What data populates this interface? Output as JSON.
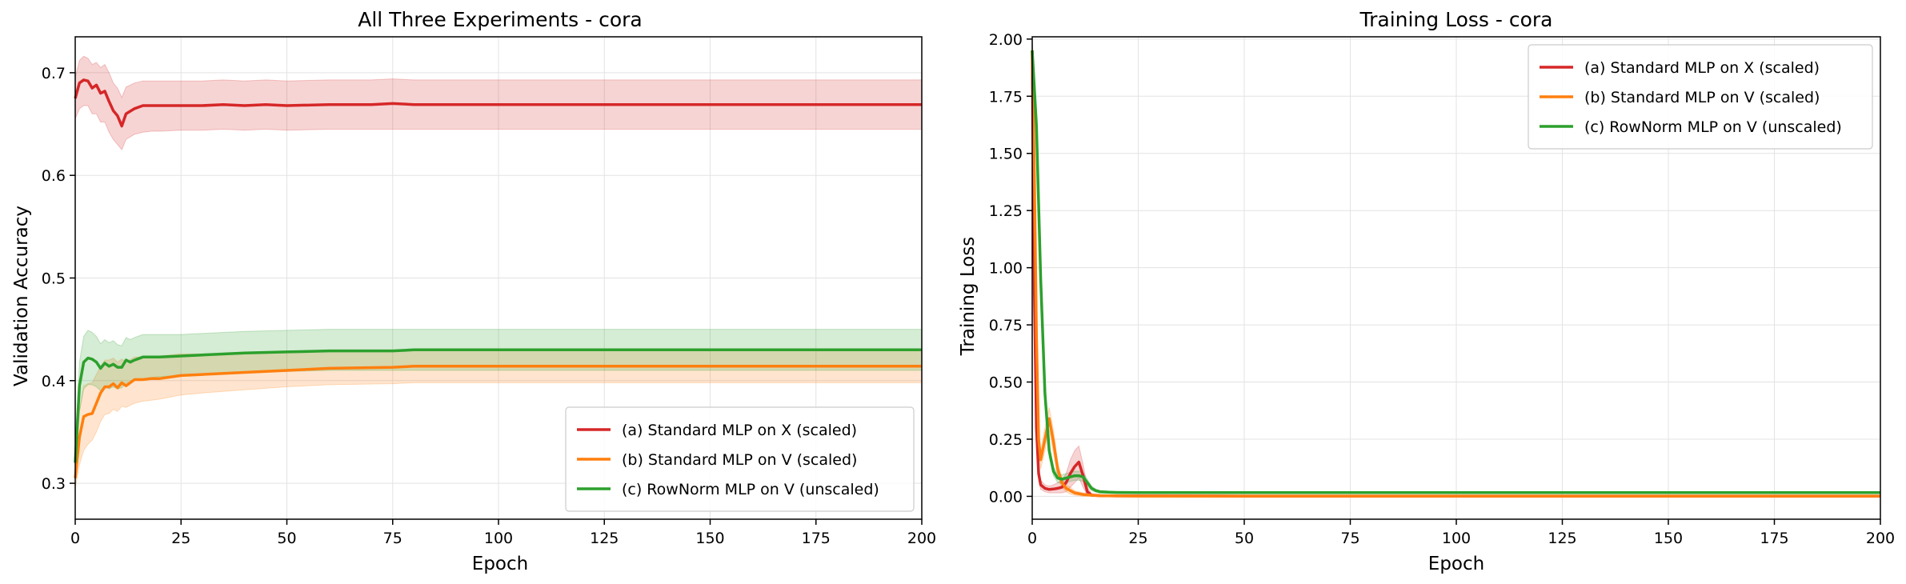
{
  "colors": {
    "a": "#d62728",
    "b": "#ff7f0e",
    "c": "#2ca02c"
  },
  "chart_data": [
    {
      "type": "line",
      "title": "All Three Experiments - cora",
      "xlabel": "Epoch",
      "ylabel": "Validation Accuracy",
      "xlim": [
        0,
        200
      ],
      "ylim": [
        0.265,
        0.735
      ],
      "xticks": [
        "0",
        "25",
        "50",
        "75",
        "100",
        "125",
        "150",
        "175",
        "200"
      ],
      "yticks": [
        "0.3",
        "0.4",
        "0.5",
        "0.6",
        "0.7"
      ],
      "grid": true,
      "legend_position": "lower-right",
      "series": [
        {
          "name": "(a) Standard MLP on X (scaled)",
          "color_key": "a",
          "x": [
            0,
            1,
            2,
            3,
            4,
            5,
            6,
            7,
            8,
            9,
            10,
            11,
            12,
            14,
            16,
            18,
            20,
            25,
            30,
            35,
            40,
            45,
            50,
            60,
            70,
            75,
            80,
            100,
            125,
            150,
            175,
            200
          ],
          "y": [
            0.675,
            0.69,
            0.693,
            0.692,
            0.685,
            0.688,
            0.68,
            0.682,
            0.672,
            0.663,
            0.658,
            0.648,
            0.66,
            0.665,
            0.668,
            0.668,
            0.668,
            0.668,
            0.668,
            0.669,
            0.668,
            0.669,
            0.668,
            0.669,
            0.669,
            0.67,
            0.669,
            0.669,
            0.669,
            0.669,
            0.669,
            0.669
          ],
          "lower": [
            0.655,
            0.665,
            0.668,
            0.668,
            0.66,
            0.66,
            0.652,
            0.652,
            0.642,
            0.635,
            0.63,
            0.625,
            0.635,
            0.64,
            0.642,
            0.643,
            0.643,
            0.644,
            0.644,
            0.645,
            0.644,
            0.645,
            0.644,
            0.645,
            0.645,
            0.645,
            0.645,
            0.645,
            0.645,
            0.645,
            0.645,
            0.645
          ],
          "upper": [
            0.695,
            0.712,
            0.716,
            0.714,
            0.708,
            0.71,
            0.705,
            0.708,
            0.7,
            0.69,
            0.685,
            0.676,
            0.686,
            0.69,
            0.692,
            0.692,
            0.692,
            0.692,
            0.692,
            0.693,
            0.692,
            0.693,
            0.692,
            0.693,
            0.693,
            0.694,
            0.693,
            0.693,
            0.693,
            0.693,
            0.693,
            0.693
          ]
        },
        {
          "name": "(b) Standard MLP on V (scaled)",
          "color_key": "b",
          "x": [
            0,
            1,
            2,
            3,
            4,
            5,
            6,
            7,
            8,
            9,
            10,
            11,
            12,
            14,
            16,
            18,
            20,
            25,
            30,
            40,
            50,
            60,
            75,
            80,
            100,
            125,
            150,
            175,
            200
          ],
          "y": [
            0.305,
            0.345,
            0.365,
            0.367,
            0.368,
            0.378,
            0.388,
            0.394,
            0.394,
            0.397,
            0.393,
            0.398,
            0.395,
            0.401,
            0.401,
            0.402,
            0.402,
            0.405,
            0.406,
            0.408,
            0.41,
            0.412,
            0.413,
            0.414,
            0.414,
            0.414,
            0.414,
            0.414,
            0.414
          ],
          "lower": [
            0.295,
            0.318,
            0.332,
            0.338,
            0.342,
            0.35,
            0.36,
            0.367,
            0.368,
            0.372,
            0.37,
            0.375,
            0.374,
            0.378,
            0.38,
            0.381,
            0.382,
            0.386,
            0.388,
            0.391,
            0.394,
            0.396,
            0.397,
            0.398,
            0.398,
            0.398,
            0.398,
            0.398,
            0.398
          ],
          "upper": [
            0.315,
            0.37,
            0.395,
            0.397,
            0.398,
            0.406,
            0.414,
            0.42,
            0.42,
            0.422,
            0.418,
            0.421,
            0.418,
            0.423,
            0.423,
            0.424,
            0.424,
            0.426,
            0.426,
            0.427,
            0.428,
            0.429,
            0.429,
            0.43,
            0.43,
            0.43,
            0.43,
            0.43,
            0.43
          ]
        },
        {
          "name": "(c) RowNorm MLP on V (unscaled)",
          "color_key": "c",
          "x": [
            0,
            1,
            2,
            3,
            4,
            5,
            6,
            7,
            8,
            9,
            10,
            11,
            12,
            13,
            14,
            16,
            18,
            20,
            25,
            30,
            40,
            50,
            60,
            75,
            80,
            100,
            125,
            150,
            175,
            200
          ],
          "y": [
            0.32,
            0.395,
            0.418,
            0.422,
            0.421,
            0.418,
            0.412,
            0.417,
            0.414,
            0.416,
            0.413,
            0.413,
            0.42,
            0.418,
            0.42,
            0.423,
            0.423,
            0.423,
            0.424,
            0.425,
            0.427,
            0.428,
            0.429,
            0.429,
            0.43,
            0.43,
            0.43,
            0.43,
            0.43,
            0.43
          ],
          "lower": [
            0.305,
            0.37,
            0.392,
            0.396,
            0.396,
            0.394,
            0.39,
            0.394,
            0.392,
            0.394,
            0.392,
            0.393,
            0.398,
            0.398,
            0.4,
            0.402,
            0.403,
            0.404,
            0.405,
            0.406,
            0.408,
            0.409,
            0.41,
            0.41,
            0.41,
            0.41,
            0.41,
            0.41,
            0.41,
            0.41
          ],
          "upper": [
            0.335,
            0.418,
            0.443,
            0.449,
            0.447,
            0.443,
            0.436,
            0.44,
            0.437,
            0.439,
            0.435,
            0.434,
            0.442,
            0.44,
            0.442,
            0.445,
            0.445,
            0.445,
            0.445,
            0.446,
            0.448,
            0.449,
            0.45,
            0.45,
            0.45,
            0.45,
            0.45,
            0.45,
            0.45,
            0.45
          ]
        }
      ]
    },
    {
      "type": "line",
      "title": "Training Loss - cora",
      "xlabel": "Epoch",
      "ylabel": "Training Loss",
      "xlim": [
        0,
        200
      ],
      "ylim": [
        -0.1,
        2.01
      ],
      "xticks": [
        "0",
        "25",
        "50",
        "75",
        "100",
        "125",
        "150",
        "175",
        "200"
      ],
      "yticks": [
        "0.00",
        "0.25",
        "0.50",
        "0.75",
        "1.00",
        "1.25",
        "1.50",
        "1.75",
        "2.00"
      ],
      "grid": true,
      "legend_position": "top-right",
      "series": [
        {
          "name": "(a) Standard MLP on X (scaled)",
          "color_key": "a",
          "x": [
            0,
            0.5,
            1,
            1.5,
            2,
            3,
            4,
            5,
            6,
            7,
            8,
            9,
            10,
            11,
            12,
            13,
            14,
            16,
            20,
            25,
            50,
            100,
            150,
            200
          ],
          "y": [
            1.95,
            0.9,
            0.3,
            0.1,
            0.05,
            0.035,
            0.03,
            0.032,
            0.035,
            0.04,
            0.06,
            0.1,
            0.13,
            0.15,
            0.09,
            0.02,
            0.005,
            0.003,
            0.002,
            0.002,
            0.001,
            0.001,
            0.001,
            0.001
          ],
          "lower": [
            1.9,
            0.85,
            0.26,
            0.07,
            0.03,
            0.02,
            0.015,
            0.015,
            0.015,
            0.015,
            0.02,
            0.04,
            0.06,
            0.08,
            0.04,
            0.005,
            0.0,
            0.0,
            0.0,
            0.0,
            0.0,
            0.0,
            0.0,
            0.0
          ],
          "upper": [
            2.0,
            0.95,
            0.34,
            0.13,
            0.07,
            0.05,
            0.045,
            0.05,
            0.06,
            0.07,
            0.1,
            0.16,
            0.2,
            0.22,
            0.14,
            0.04,
            0.012,
            0.008,
            0.005,
            0.005,
            0.003,
            0.003,
            0.003,
            0.003
          ]
        },
        {
          "name": "(b) Standard MLP on V (scaled)",
          "color_key": "b",
          "x": [
            0,
            0.5,
            1,
            1.5,
            2,
            3,
            4,
            5,
            6,
            7,
            8,
            9,
            10,
            12,
            14,
            16,
            20,
            25,
            50,
            100,
            150,
            200
          ],
          "y": [
            1.95,
            1.4,
            0.7,
            0.25,
            0.16,
            0.25,
            0.34,
            0.24,
            0.12,
            0.06,
            0.035,
            0.025,
            0.015,
            0.008,
            0.005,
            0.003,
            0.002,
            0.001,
            0.001,
            0.001,
            0.001,
            0.001
          ],
          "lower": [
            1.9,
            1.3,
            0.62,
            0.2,
            0.12,
            0.2,
            0.29,
            0.19,
            0.09,
            0.04,
            0.02,
            0.01,
            0.005,
            0.0,
            0.0,
            0.0,
            0.0,
            0.0,
            0.0,
            0.0,
            0.0,
            0.0
          ],
          "upper": [
            2.0,
            1.5,
            0.78,
            0.3,
            0.2,
            0.3,
            0.39,
            0.29,
            0.15,
            0.08,
            0.05,
            0.04,
            0.025,
            0.015,
            0.01,
            0.007,
            0.005,
            0.003,
            0.003,
            0.003,
            0.003,
            0.003
          ]
        },
        {
          "name": "(c) RowNorm MLP on V (unscaled)",
          "color_key": "c",
          "x": [
            0,
            1,
            2,
            3,
            4,
            5,
            6,
            7,
            8,
            9,
            10,
            11,
            12,
            13,
            14,
            15,
            16,
            18,
            20,
            25,
            50,
            100,
            150,
            200
          ],
          "y": [
            1.95,
            1.62,
            0.95,
            0.45,
            0.2,
            0.11,
            0.08,
            0.075,
            0.08,
            0.085,
            0.09,
            0.09,
            0.085,
            0.06,
            0.035,
            0.025,
            0.02,
            0.018,
            0.017,
            0.016,
            0.016,
            0.016,
            0.016,
            0.016
          ],
          "lower": [
            1.9,
            1.55,
            0.88,
            0.4,
            0.17,
            0.09,
            0.06,
            0.055,
            0.06,
            0.065,
            0.07,
            0.07,
            0.065,
            0.045,
            0.025,
            0.018,
            0.014,
            0.013,
            0.012,
            0.012,
            0.012,
            0.012,
            0.012,
            0.012
          ],
          "upper": [
            2.0,
            1.68,
            1.02,
            0.5,
            0.23,
            0.13,
            0.1,
            0.095,
            0.1,
            0.105,
            0.11,
            0.11,
            0.105,
            0.075,
            0.045,
            0.032,
            0.026,
            0.023,
            0.022,
            0.021,
            0.021,
            0.021,
            0.021,
            0.021
          ]
        }
      ]
    }
  ]
}
